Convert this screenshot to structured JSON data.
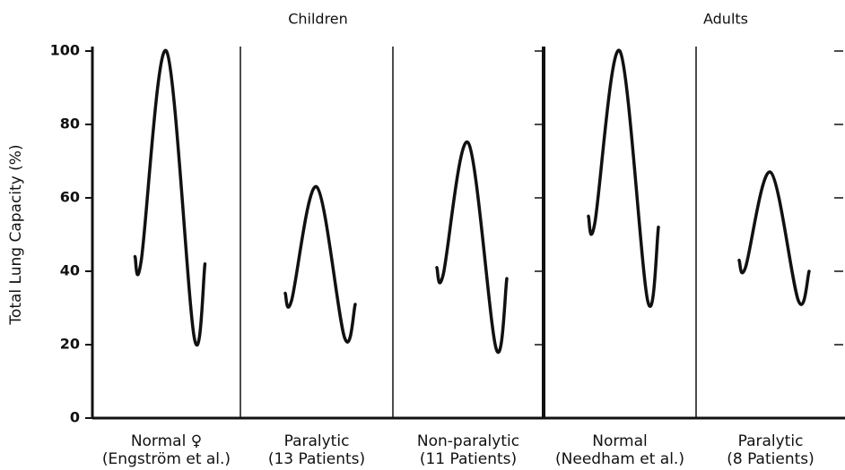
{
  "chart_data": {
    "type": "line",
    "ylabel": "Total Lung Capacity (%)",
    "groups": [
      {
        "name": "Children",
        "span": [
          0,
          2
        ]
      },
      {
        "name": "Adults",
        "span": [
          3,
          4
        ]
      }
    ],
    "categories": [
      [
        "Normal ♀",
        "(Engström et al.)"
      ],
      [
        "Paralytic",
        "(13 Patients)"
      ],
      [
        "Non-paralytic",
        "(11 Patients)"
      ],
      [
        "Normal",
        "(Needham et al.)"
      ],
      [
        "Paralytic",
        "(8 Patients)"
      ]
    ],
    "series": [
      {
        "values": [
          44,
          43,
          100,
          22,
          42
        ]
      },
      {
        "values": [
          34,
          32,
          63,
          22,
          31
        ]
      },
      {
        "values": [
          41,
          39,
          75,
          19,
          38
        ]
      },
      {
        "values": [
          55,
          53,
          100,
          32,
          52
        ]
      },
      {
        "values": [
          43,
          41,
          67,
          32,
          40
        ]
      }
    ],
    "color": "#111111",
    "ylim": [
      0,
      100
    ],
    "yticks": [
      0,
      20,
      40,
      60,
      80,
      100
    ]
  }
}
